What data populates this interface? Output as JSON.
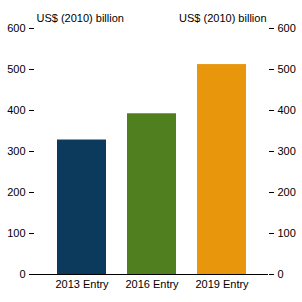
{
  "chart_data": {
    "type": "bar",
    "categories": [
      "2013 Entry",
      "2016 Entry",
      "2019 Entry"
    ],
    "values": [
      328,
      392,
      512
    ],
    "colors": [
      "#0b3a5d",
      "#4f7f1f",
      "#e8960c"
    ],
    "ylabel": "US$ (2010) billion",
    "y2label": "US$ (2010) billion",
    "ylim": [
      0,
      600
    ],
    "yticks": [
      0,
      100,
      200,
      300,
      400,
      500,
      600
    ],
    "y2lim": [
      0,
      600
    ],
    "y2ticks": [
      0,
      100,
      200,
      300,
      400,
      500,
      600
    ],
    "grid": false
  }
}
